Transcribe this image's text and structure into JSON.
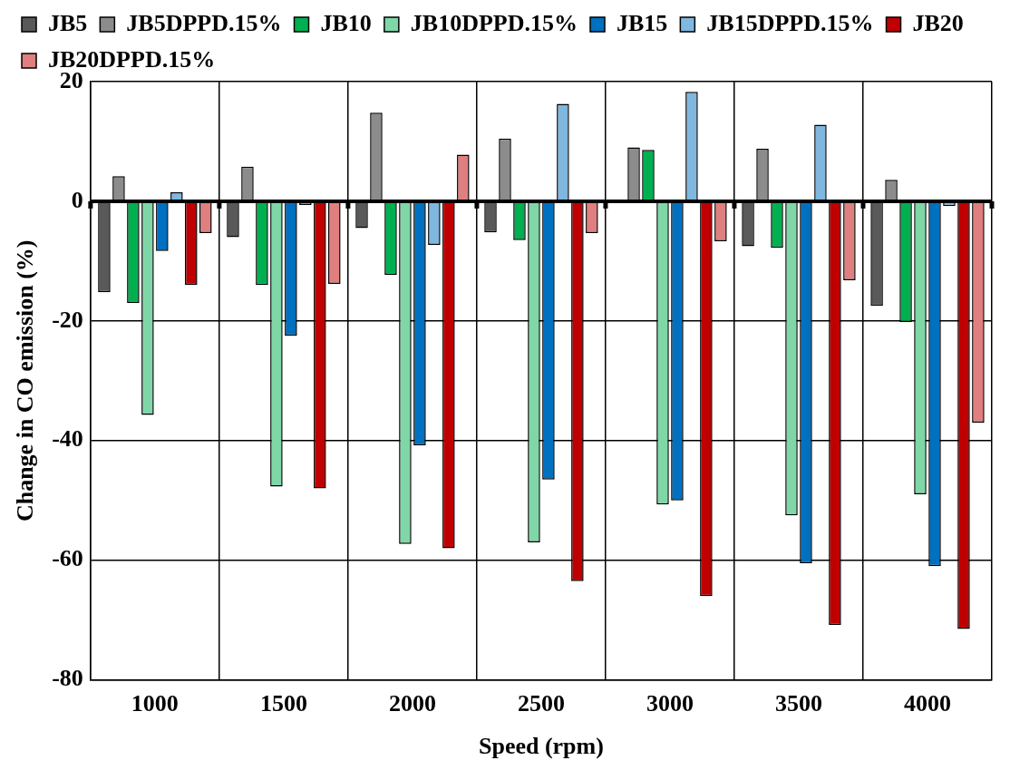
{
  "chart_data": {
    "type": "bar",
    "xlabel": "Speed (rpm)",
    "ylabel": "Change in CO emission (%)",
    "categories": [
      "1000",
      "1500",
      "2000",
      "2500",
      "3000",
      "3500",
      "4000"
    ],
    "series": [
      {
        "name": "JB5",
        "color": "#595959",
        "values": [
          -15.2,
          -6,
          -4.5,
          -5.2,
          0,
          -7.5,
          -17.5
        ]
      },
      {
        "name": "JB5DPPD.15%",
        "color": "#8c8c8c",
        "values": [
          4.2,
          5.8,
          14.8,
          10.5,
          9,
          8.8,
          3.6
        ]
      },
      {
        "name": "JB10",
        "color": "#00b050",
        "values": [
          -17,
          -14,
          -12.3,
          -6.5,
          8.6,
          -7.8,
          -20.2
        ]
      },
      {
        "name": "JB10DPPD.15%",
        "color": "#7fd7a7",
        "values": [
          -35.7,
          -47.7,
          -57.3,
          -57,
          -50.7,
          -52.5,
          -49
        ]
      },
      {
        "name": "JB15",
        "color": "#0070c0",
        "values": [
          -8.3,
          -22.5,
          -40.8,
          -46.5,
          -50,
          -60.5,
          -61
        ]
      },
      {
        "name": "JB15DPPD.15%",
        "color": "#7fb7df",
        "values": [
          1.5,
          -0.6,
          -7.3,
          16.3,
          18.3,
          12.8,
          -0.8
        ]
      },
      {
        "name": "JB20",
        "color": "#c00000",
        "values": [
          -14,
          -48,
          -58,
          -63.5,
          -66,
          -70.8,
          -71.5
        ]
      },
      {
        "name": "JB20DPPD.15%",
        "color": "#e07f7f",
        "values": [
          -5.3,
          -13.8,
          7.8,
          -5.3,
          -6.7,
          -13.2,
          -37
        ]
      }
    ],
    "ylim": [
      -80,
      20
    ],
    "yticks": [
      -80,
      -60,
      -40,
      -20,
      0,
      20
    ],
    "grid": true,
    "legend": "top"
  }
}
